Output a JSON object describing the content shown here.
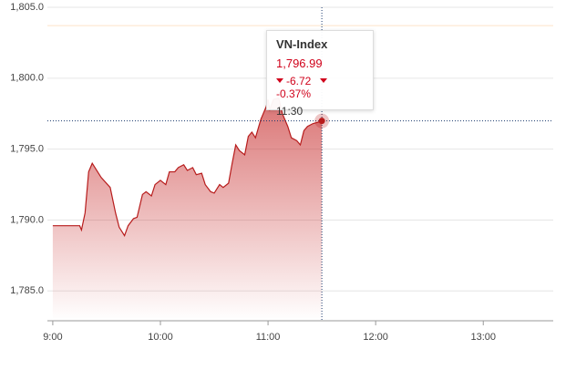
{
  "chart_data": {
    "type": "area",
    "x": [
      "9:00",
      "9:05",
      "9:10",
      "9:15",
      "9:16",
      "9:18",
      "9:20",
      "9:22",
      "9:27",
      "9:32",
      "9:35",
      "9:37",
      "9:40",
      "9:42",
      "9:45",
      "9:47",
      "9:50",
      "9:52",
      "9:55",
      "9:57",
      "10:00",
      "10:03",
      "10:05",
      "10:08",
      "10:10",
      "10:13",
      "10:15",
      "10:18",
      "10:20",
      "10:23",
      "10:25",
      "10:28",
      "10:30",
      "10:33",
      "10:35",
      "10:38",
      "10:40",
      "10:42",
      "10:44",
      "10:47",
      "10:49",
      "10:51",
      "10:53",
      "10:56",
      "10:59",
      "11:00",
      "11:01",
      "11:03",
      "11:06",
      "11:08",
      "11:11",
      "11:13",
      "11:16",
      "11:18",
      "11:20",
      "11:22",
      "11:25",
      "11:28",
      "11:30"
    ],
    "series": [
      {
        "name": "VN-Index",
        "color": "#b71c1c",
        "values": [
          1789.6,
          1789.6,
          1789.6,
          1789.6,
          1789.3,
          1790.5,
          1793.4,
          1794.0,
          1793.0,
          1792.3,
          1790.5,
          1789.5,
          1788.9,
          1789.6,
          1790.1,
          1790.2,
          1791.8,
          1792.0,
          1791.7,
          1792.5,
          1792.8,
          1792.5,
          1793.4,
          1793.4,
          1793.7,
          1793.9,
          1793.5,
          1793.7,
          1793.2,
          1793.3,
          1792.5,
          1792.0,
          1791.9,
          1792.5,
          1792.3,
          1792.6,
          1794.0,
          1795.3,
          1794.9,
          1794.6,
          1795.9,
          1796.2,
          1795.8,
          1797.1,
          1798.0,
          1798.5,
          1797.8,
          1798.5,
          1798.6,
          1797.5,
          1796.6,
          1795.8,
          1795.6,
          1795.3,
          1796.3,
          1796.6,
          1796.8,
          1796.9,
          1796.99
        ]
      }
    ],
    "xlim": [
      "8:57",
      "13:39"
    ],
    "xticks": [
      "9:00",
      "10:00",
      "11:00",
      "12:00",
      "13:00"
    ],
    "ylim": [
      1782.9,
      1805
    ],
    "yticks": [
      {
        "value": 1785,
        "label": "1,785.0"
      },
      {
        "value": 1790,
        "label": "1,790.0"
      },
      {
        "value": 1795,
        "label": "1,795.0"
      },
      {
        "value": 1800,
        "label": "1,800.0"
      },
      {
        "value": 1805,
        "label": "1,805.0"
      }
    ],
    "reference_line": 1803.71,
    "grid": true,
    "tooltip": {
      "value": "1,796.99",
      "change": "-6.72",
      "change_pct": "-0.37%",
      "time": "11:30"
    }
  }
}
